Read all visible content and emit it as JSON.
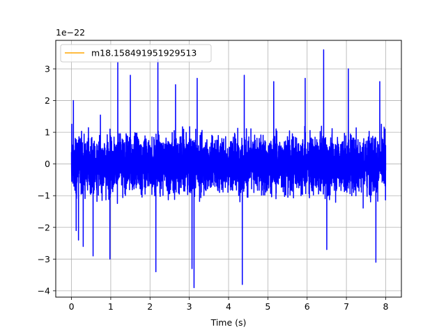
{
  "chart_data": {
    "type": "line",
    "title": "",
    "xlabel": "Time (s)",
    "ylabel": "",
    "y_scale_label": "1e−22",
    "xlim": [
      -0.4,
      8.4
    ],
    "ylim": [
      -4.2,
      3.9
    ],
    "x_ticks": [
      0,
      1,
      2,
      3,
      4,
      5,
      6,
      7,
      8
    ],
    "y_ticks": [
      -4,
      -3,
      -2,
      -1,
      0,
      1,
      2,
      3
    ],
    "grid": true,
    "legend_position": "top-left",
    "series": [
      {
        "name": "m18.158491951929513",
        "color": "#ffa500",
        "x": [],
        "values": []
      },
      {
        "name": "",
        "color": "#0000ff",
        "x_range": [
          0,
          8
        ],
        "typical_range": [
          -1.9,
          2.0
        ],
        "peak_events": [
          {
            "x": 0.05,
            "y": 2.0
          },
          {
            "x": 0.12,
            "y": -2.1
          },
          {
            "x": 0.18,
            "y": -2.4
          },
          {
            "x": 0.3,
            "y": -2.6
          },
          {
            "x": 0.55,
            "y": -2.9
          },
          {
            "x": 0.98,
            "y": -3.0
          },
          {
            "x": 1.18,
            "y": 3.2
          },
          {
            "x": 1.5,
            "y": 2.8
          },
          {
            "x": 2.15,
            "y": -3.4
          },
          {
            "x": 2.2,
            "y": 3.3
          },
          {
            "x": 2.65,
            "y": 2.5
          },
          {
            "x": 3.07,
            "y": -3.3
          },
          {
            "x": 3.12,
            "y": -3.9
          },
          {
            "x": 3.2,
            "y": 2.7
          },
          {
            "x": 4.35,
            "y": -3.8
          },
          {
            "x": 4.4,
            "y": 2.8
          },
          {
            "x": 5.15,
            "y": 2.6
          },
          {
            "x": 5.95,
            "y": 2.7
          },
          {
            "x": 6.42,
            "y": 3.6
          },
          {
            "x": 6.5,
            "y": -2.7
          },
          {
            "x": 7.05,
            "y": 3.0
          },
          {
            "x": 7.75,
            "y": -3.1
          },
          {
            "x": 7.85,
            "y": 2.6
          }
        ]
      }
    ]
  }
}
